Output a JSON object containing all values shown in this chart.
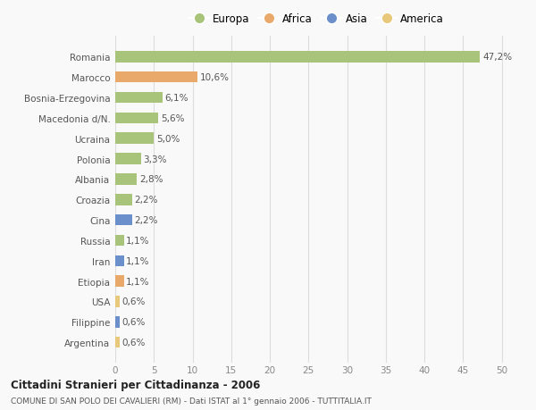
{
  "categories": [
    "Argentina",
    "Filippine",
    "USA",
    "Etiopia",
    "Iran",
    "Russia",
    "Cina",
    "Croazia",
    "Albania",
    "Polonia",
    "Ucraina",
    "Macedonia d/N.",
    "Bosnia-Erzegovina",
    "Marocco",
    "Romania"
  ],
  "values": [
    0.6,
    0.6,
    0.6,
    1.1,
    1.1,
    1.1,
    2.2,
    2.2,
    2.8,
    3.3,
    5.0,
    5.6,
    6.1,
    10.6,
    47.2
  ],
  "labels": [
    "0,6%",
    "0,6%",
    "0,6%",
    "1,1%",
    "1,1%",
    "1,1%",
    "2,2%",
    "2,2%",
    "2,8%",
    "3,3%",
    "5,0%",
    "5,6%",
    "6,1%",
    "10,6%",
    "47,2%"
  ],
  "colors": [
    "#e8c87a",
    "#6b8fca",
    "#e8c87a",
    "#e8a96a",
    "#6b8fca",
    "#a8c47a",
    "#6b8fca",
    "#a8c47a",
    "#a8c47a",
    "#a8c47a",
    "#a8c47a",
    "#a8c47a",
    "#a8c47a",
    "#e8a96a",
    "#a8c47a"
  ],
  "legend_labels": [
    "Europa",
    "Africa",
    "Asia",
    "America"
  ],
  "legend_colors": [
    "#a8c47a",
    "#e8a96a",
    "#6b8fca",
    "#e8c87a"
  ],
  "xlim": [
    0,
    52
  ],
  "xticks": [
    0,
    5,
    10,
    15,
    20,
    25,
    30,
    35,
    40,
    45,
    50
  ],
  "title": "Cittadini Stranieri per Cittadinanza - 2006",
  "subtitle": "COMUNE DI SAN POLO DEI CAVALIERI (RM) - Dati ISTAT al 1° gennaio 2006 - TUTTITALIA.IT",
  "background_color": "#f9f9f9",
  "grid_color": "#dddddd",
  "bar_height": 0.55
}
